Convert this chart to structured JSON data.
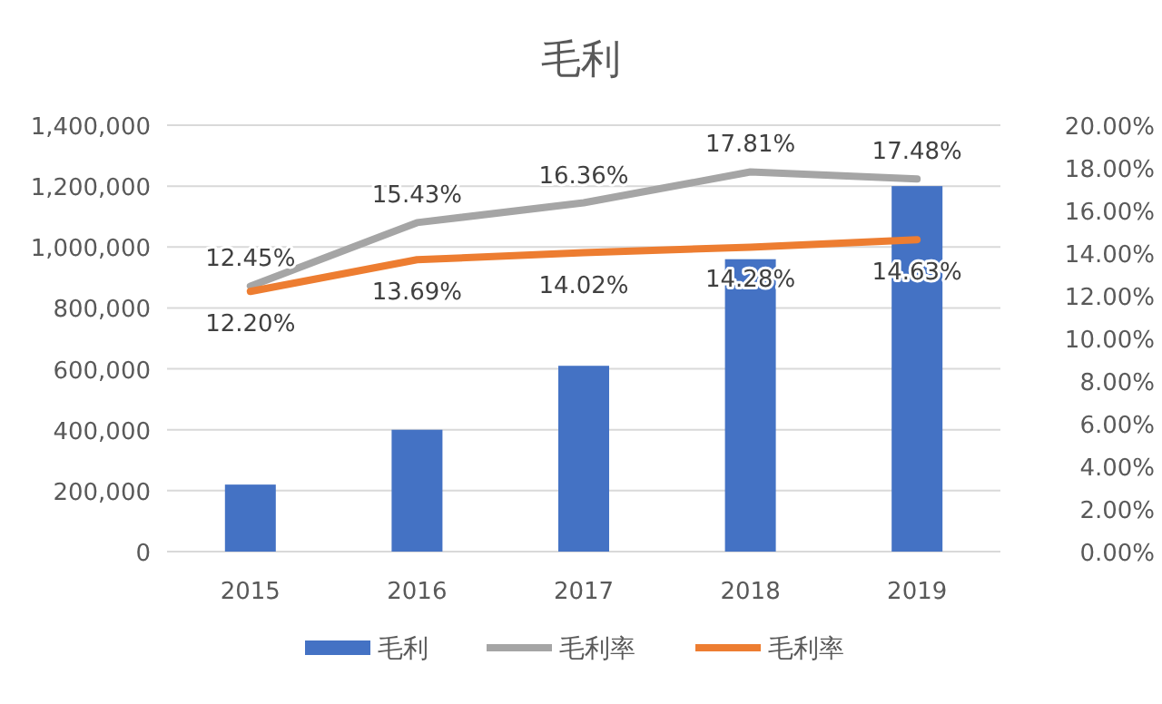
{
  "chart_data": {
    "type": "bar",
    "title": "毛利",
    "categories": [
      "2015",
      "2016",
      "2017",
      "2018",
      "2019"
    ],
    "series": [
      {
        "name": "毛利",
        "color": "#4472c4",
        "values": [
          220000,
          400000,
          610000,
          960000,
          1200000
        ]
      },
      {
        "name": "毛利率",
        "type": "line",
        "axis": "y2",
        "color": "#a5a5a5",
        "values": [
          12.45,
          15.43,
          16.36,
          17.81,
          17.48
        ],
        "value_labels": [
          "12.45%",
          "15.43%",
          "16.36%",
          "17.81%",
          "17.48%"
        ]
      },
      {
        "name": "毛利率",
        "type": "line",
        "axis": "y2",
        "color": "#ed7d31",
        "values": [
          12.2,
          13.69,
          14.02,
          14.28,
          14.63
        ],
        "value_labels": [
          "12.20%",
          "13.69%",
          "14.02%",
          "14.28%",
          "14.63%"
        ]
      }
    ],
    "ylim": [
      0,
      1400000
    ],
    "yticks": [
      {
        "value": 0,
        "label": "0"
      },
      {
        "value": 200000,
        "label": "200,000"
      },
      {
        "value": 400000,
        "label": "400,000"
      },
      {
        "value": 600000,
        "label": "600,000"
      },
      {
        "value": 800000,
        "label": "800,000"
      },
      {
        "value": 1000000,
        "label": "1,000,000"
      },
      {
        "value": 1200000,
        "label": "1,200,000"
      },
      {
        "value": 1400000,
        "label": "1,400,000"
      }
    ],
    "y2lim": [
      0,
      20
    ],
    "y2ticks": [
      {
        "value": 0,
        "label": "0.00%"
      },
      {
        "value": 2,
        "label": "2.00%"
      },
      {
        "value": 4,
        "label": "4.00%"
      },
      {
        "value": 6,
        "label": "6.00%"
      },
      {
        "value": 8,
        "label": "8.00%"
      },
      {
        "value": 10,
        "label": "10.00%"
      },
      {
        "value": 12,
        "label": "12.00%"
      },
      {
        "value": 14,
        "label": "14.00%"
      },
      {
        "value": 16,
        "label": "16.00%"
      },
      {
        "value": 18,
        "label": "18.00%"
      },
      {
        "value": 20,
        "label": "20.00%"
      }
    ],
    "grid": "y",
    "legend": "bottom",
    "marker": "none",
    "line_style": "solid"
  }
}
